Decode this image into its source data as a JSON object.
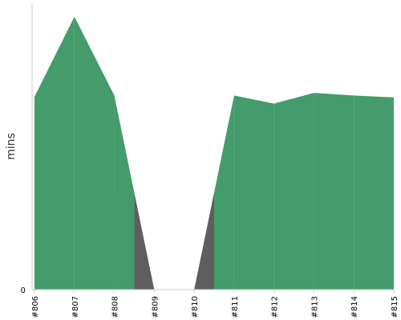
{
  "chart_data": {
    "type": "area",
    "title": "",
    "xlabel": "",
    "ylabel": "mins",
    "categories": [
      "#806",
      "#807",
      "#808",
      "#809",
      "#810",
      "#811",
      "#812",
      "#813",
      "#814",
      "#815"
    ],
    "y_tick_labels": [
      "0"
    ],
    "ylim": [
      0,
      107
    ],
    "grid": false,
    "series": [
      {
        "values": [
          72,
          102,
          72.5,
          0,
          0,
          72.5,
          69.5,
          73.5,
          72.5,
          71.8
        ],
        "color": "#449c6d"
      }
    ],
    "gap_color": "#5e5e5e"
  }
}
